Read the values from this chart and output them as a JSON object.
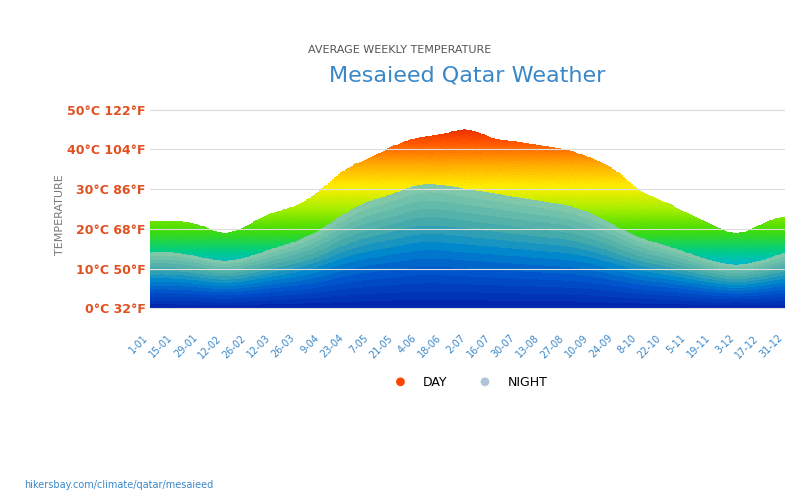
{
  "title": "Mesaieed Qatar Weather",
  "subtitle": "AVERAGE WEEKLY TEMPERATURE",
  "ylabel": "TEMPERATURE",
  "url_text": "hikersbay.com/climate/qatar/mesaieed",
  "ytick_labels": [
    "0°C 32°F",
    "10°C 50°F",
    "20°C 68°F",
    "30°C 86°F",
    "40°C 104°F",
    "50°C 122°F"
  ],
  "ytick_values": [
    0,
    10,
    20,
    30,
    40,
    50
  ],
  "ylim": [
    -5,
    52
  ],
  "xtick_labels": [
    "1-01",
    "15-01",
    "29-01",
    "12-02",
    "26-02",
    "12-03",
    "26-03",
    "9-04",
    "23-04",
    "7-05",
    "21-05",
    "4-06",
    "18-06",
    "2-07",
    "16-07",
    "30-07",
    "13-08",
    "27-08",
    "10-09",
    "24-09",
    "8-10",
    "22-10",
    "5-11",
    "19-11",
    "3-12",
    "17-12",
    "31-12"
  ],
  "day_temps": [
    22,
    22,
    21,
    19,
    21,
    24,
    26,
    30,
    35,
    38,
    41,
    43,
    44,
    45,
    43,
    42,
    41,
    40,
    38,
    35,
    30,
    27,
    24,
    21,
    19,
    21,
    23
  ],
  "night_temps": [
    14,
    14,
    13,
    12,
    13,
    15,
    17,
    20,
    24,
    27,
    29,
    31,
    31,
    30,
    29,
    28,
    27,
    26,
    24,
    21,
    18,
    16,
    14,
    12,
    11,
    12,
    14
  ],
  "title_color": "#3a87c8",
  "subtitle_color": "#555555",
  "ytick_color": "#e05020",
  "xtick_color": "#3a87c8",
  "ylabel_color": "#777777",
  "background_color": "#ffffff",
  "grid_color": "#dddddd",
  "url_color": "#3a87c8",
  "legend_day_color": "#ff4500",
  "legend_night_color": "#b0c4d8"
}
